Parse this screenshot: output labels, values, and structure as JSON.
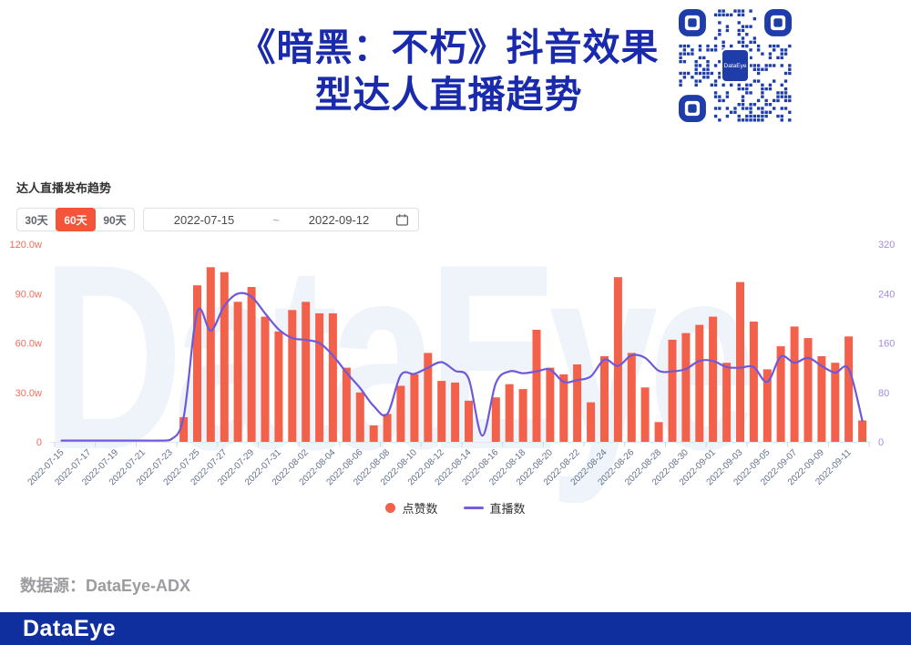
{
  "header": {
    "title_line1": "《暗黑：不朽》抖音效果",
    "title_line2": "型达人直播趋势",
    "qr_label": "DataEye"
  },
  "panel": {
    "section_title": "达人直播发布趋势",
    "range_buttons": [
      {
        "label": "30天",
        "active": false
      },
      {
        "label": "60天",
        "active": true
      },
      {
        "label": "90天",
        "active": false
      }
    ],
    "date_from": "2022-07-15",
    "date_separator": "~",
    "date_to": "2022-09-12"
  },
  "chart_data": {
    "type": "bar+line",
    "title": "达人直播发布趋势",
    "x": [
      "2022-07-15",
      "2022-07-16",
      "2022-07-17",
      "2022-07-18",
      "2022-07-19",
      "2022-07-20",
      "2022-07-21",
      "2022-07-22",
      "2022-07-23",
      "2022-07-24",
      "2022-07-25",
      "2022-07-26",
      "2022-07-27",
      "2022-07-28",
      "2022-07-29",
      "2022-07-30",
      "2022-07-31",
      "2022-08-01",
      "2022-08-02",
      "2022-08-03",
      "2022-08-04",
      "2022-08-05",
      "2022-08-06",
      "2022-08-07",
      "2022-08-08",
      "2022-08-09",
      "2022-08-10",
      "2022-08-11",
      "2022-08-12",
      "2022-08-13",
      "2022-08-14",
      "2022-08-15",
      "2022-08-16",
      "2022-08-17",
      "2022-08-18",
      "2022-08-19",
      "2022-08-20",
      "2022-08-21",
      "2022-08-22",
      "2022-08-23",
      "2022-08-24",
      "2022-08-25",
      "2022-08-26",
      "2022-08-27",
      "2022-08-28",
      "2022-08-29",
      "2022-08-30",
      "2022-08-31",
      "2022-09-01",
      "2022-09-02",
      "2022-09-03",
      "2022-09-04",
      "2022-09-05",
      "2022-09-06",
      "2022-09-07",
      "2022-09-08",
      "2022-09-09",
      "2022-09-10",
      "2022-09-11",
      "2022-09-12"
    ],
    "x_label_every": 2,
    "series": [
      {
        "name": "点赞数",
        "type": "bar",
        "axis": "left",
        "unit": "w(万)",
        "color": "#f4614b",
        "values": [
          0,
          0,
          0,
          0,
          0,
          0,
          0,
          0,
          0,
          15,
          95,
          106,
          103,
          85,
          94,
          76,
          67,
          80,
          85,
          78,
          78,
          45,
          30,
          10,
          17,
          34,
          41,
          54,
          37,
          36,
          25,
          0,
          27,
          35,
          32,
          68,
          45,
          41,
          47,
          24,
          52,
          100,
          54,
          33,
          12,
          62,
          66,
          71,
          76,
          48,
          97,
          73,
          44,
          58,
          70,
          63,
          52,
          48,
          64,
          13
        ]
      },
      {
        "name": "直播数",
        "type": "line",
        "axis": "right",
        "color": "#7058da",
        "values": [
          2,
          2,
          2,
          2,
          2,
          2,
          2,
          2,
          3,
          40,
          210,
          180,
          220,
          240,
          235,
          208,
          182,
          168,
          165,
          160,
          140,
          112,
          87,
          58,
          45,
          108,
          110,
          120,
          129,
          115,
          102,
          10,
          95,
          114,
          111,
          114,
          117,
          97,
          100,
          106,
          133,
          123,
          140,
          136,
          115,
          114,
          118,
          131,
          131,
          121,
          120,
          121,
          97,
          138,
          128,
          136,
          123,
          112,
          118,
          34
        ]
      }
    ],
    "left_axis": {
      "ticks": [
        "120.0w",
        "90.0w",
        "60.0w",
        "30.0w",
        "0"
      ],
      "max": 120,
      "color": "#f56c5c"
    },
    "right_axis": {
      "ticks": [
        "320",
        "240",
        "160",
        "80",
        "0"
      ],
      "max": 320,
      "color": "#a58ae0"
    },
    "legend": [
      "点赞数",
      "直播数"
    ],
    "legend_position": "bottom",
    "grid": false,
    "x_label_color": "#62708a",
    "axis_line_color": "#e1e6f2",
    "tick_color": "#ccd5e4"
  },
  "watermark": "DataEye",
  "footer": {
    "source": "数据源：DataEye-ADX",
    "brand": "DataEye"
  },
  "colors": {
    "title_blue": "#1a2aad",
    "footer_blue": "#0f2f9e",
    "qr_blue": "#1e3da9",
    "button_active": "#f4543a"
  }
}
